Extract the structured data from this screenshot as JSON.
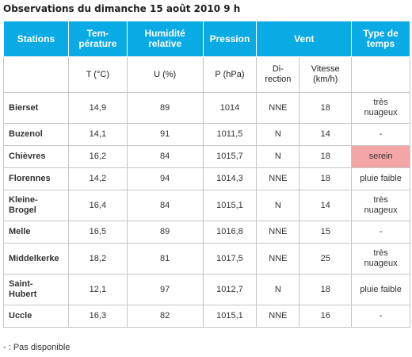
{
  "title": "Observations du dimanche 15 août 2010 9 h",
  "headers": {
    "stations": "Stations",
    "temperature": "Tem-\npérature",
    "humidity": "Humidité\nrelative",
    "pressure": "Pression",
    "wind": "Vent",
    "weather": "Type de\ntemps",
    "temp_unit": "T (°C)",
    "hum_unit": "U (%)",
    "press_unit": "P (hPa)",
    "direction": "Di-\nrection",
    "speed": "Vitesse\n(km/h)"
  },
  "rows": [
    {
      "station": "Bierset",
      "temp": "14,9",
      "hum": "89",
      "press": "1014",
      "dir": "NNE",
      "speed": "18",
      "weather": "très\nnuageux"
    },
    {
      "station": "Buzenol",
      "temp": "14,1",
      "hum": "91",
      "press": "1011,5",
      "dir": "N",
      "speed": "14",
      "weather": "-"
    },
    {
      "station": "Chièvres",
      "temp": "16,2",
      "hum": "84",
      "press": "1015,7",
      "dir": "N",
      "speed": "18",
      "weather": "serein"
    },
    {
      "station": "Florennes",
      "temp": "14,2",
      "hum": "94",
      "press": "1014,3",
      "dir": "NNE",
      "speed": "18",
      "weather": "pluie faible"
    },
    {
      "station": "Kleine-\nBrogel",
      "temp": "16,4",
      "hum": "84",
      "press": "1015,1",
      "dir": "N",
      "speed": "14",
      "weather": "très\nnuageux"
    },
    {
      "station": "Melle",
      "temp": "16,5",
      "hum": "89",
      "press": "1016,8",
      "dir": "NNE",
      "speed": "15",
      "weather": "-"
    },
    {
      "station": "Middelkerke",
      "temp": "18,2",
      "hum": "81",
      "press": "1017,5",
      "dir": "NNE",
      "speed": "25",
      "weather": "très\nnuageux"
    },
    {
      "station": "Saint-\nHubert",
      "temp": "12,1",
      "hum": "97",
      "press": "1012,7",
      "dir": "N",
      "speed": "18",
      "weather": "pluie faible"
    },
    {
      "station": "Uccle",
      "temp": "16,3",
      "hum": "82",
      "press": "1015,1",
      "dir": "NNE",
      "speed": "16",
      "weather": "-"
    }
  ],
  "colors": {
    "header_bg": "#0aaae4",
    "serein_bg": "#f4a6a6"
  },
  "footnote": "- : Pas disponible"
}
